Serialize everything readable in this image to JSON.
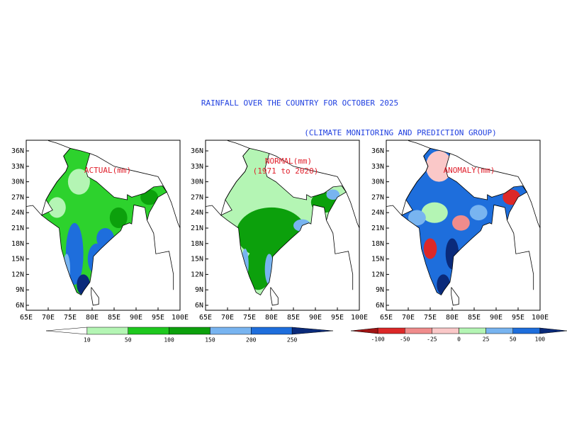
{
  "title": "RAINFALL OVER THE COUNTRY FOR OCTOBER 2025",
  "subtitle": "(CLIMATE MONITORING AND PREDICTION GROUP)",
  "panels": [
    {
      "labels": [
        "ACTUAL(mm)"
      ]
    },
    {
      "labels": [
        "NORMAL(mm)",
        "(1971 to 2020)"
      ]
    },
    {
      "labels": [
        "ANOMALY(mm)"
      ]
    }
  ],
  "lon_ticks": [
    "65E",
    "70E",
    "75E",
    "80E",
    "85E",
    "90E",
    "95E",
    "100E"
  ],
  "lat_ticks": [
    "36N",
    "33N",
    "30N",
    "27N",
    "24N",
    "21N",
    "18N",
    "15N",
    "12N",
    "9N",
    "6N"
  ],
  "colorbars": [
    {
      "labels": [
        10,
        50,
        100,
        150,
        200,
        250
      ],
      "colors": [
        "#ffffff",
        "#b4f5b4",
        "#1ec81e",
        "#0ca00c",
        "#78b4f0",
        "#1e6edc",
        "#0a2a7a"
      ]
    },
    {
      "labels": [
        -100,
        -50,
        -25,
        0,
        25,
        50,
        100
      ],
      "colors": [
        "#a01414",
        "#dc2828",
        "#f08c8c",
        "#fac8c8",
        "#b4f5b4",
        "#78b4f0",
        "#1e6edc",
        "#0a2a7a"
      ]
    }
  ]
}
